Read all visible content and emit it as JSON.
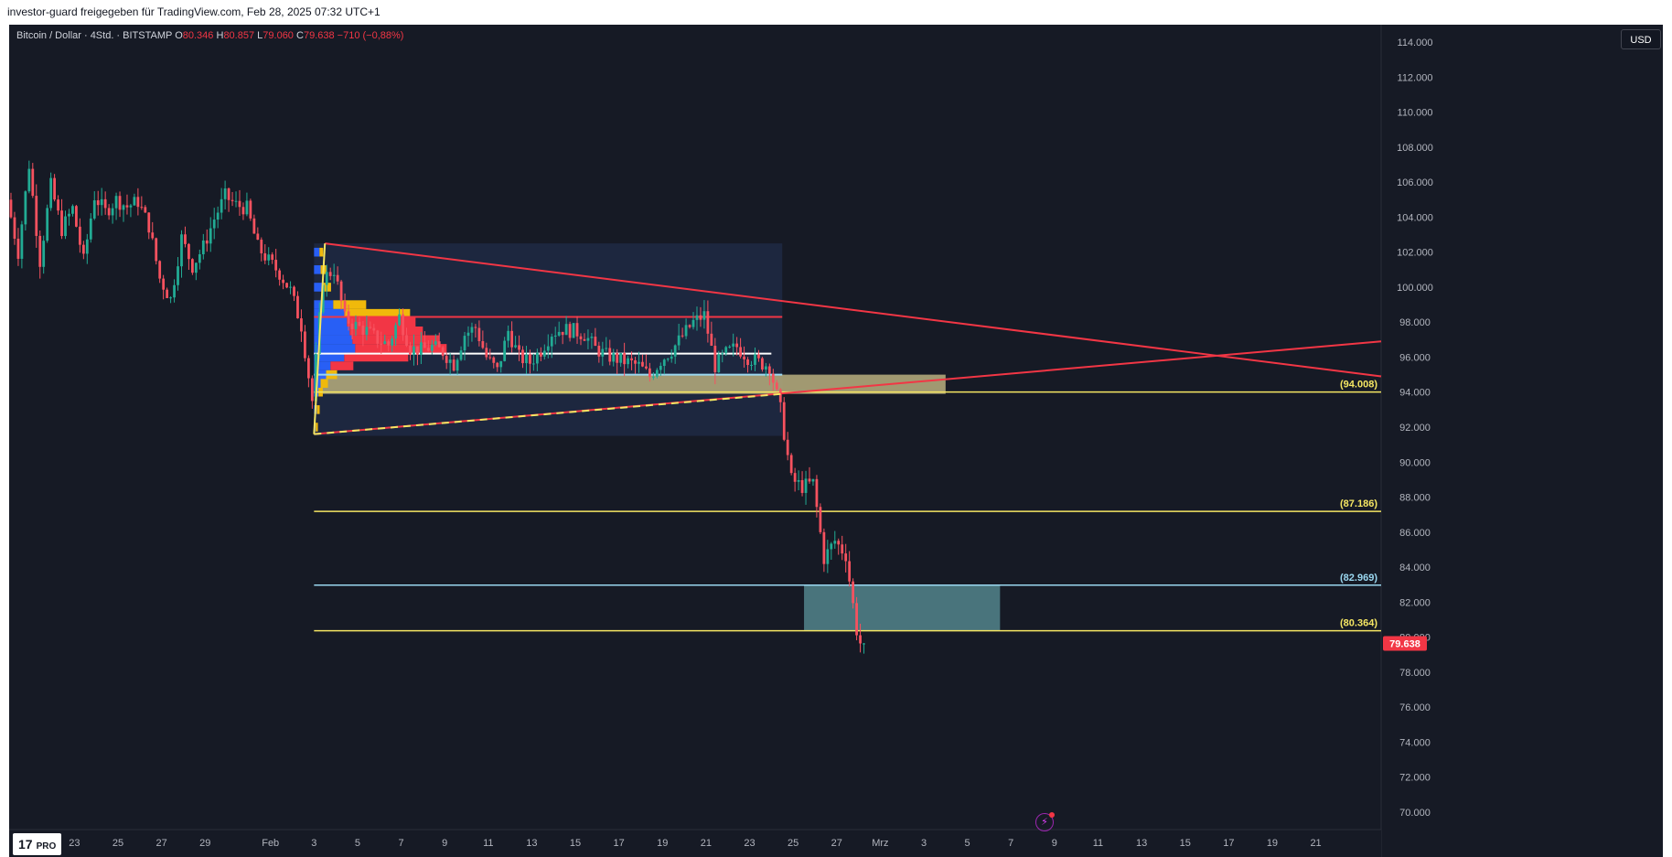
{
  "header": {
    "share_text": "investor-guard freigegeben für TradingView.com, Feb 28, 2025 07:32 UTC+1"
  },
  "legend": {
    "symbol": "Bitcoin / Dollar · 4Std. · BITSTAMP",
    "open_label": "O",
    "open_value": "80.346",
    "high_label": "H",
    "high_value": "80.857",
    "low_label": "L",
    "low_value": "79.060",
    "close_label": "C",
    "close_value": "79.638",
    "change": "−710 (−0,88%)"
  },
  "currency": "USD",
  "logo": {
    "mark": "17",
    "badge": "PRO"
  },
  "colors": {
    "background": "#161a25",
    "up": "#26a69a",
    "up_candle": "#22ab94",
    "down": "#f23645",
    "down_candle": "#f7525f",
    "level_yellow": "#f5e663",
    "level_cyan": "#9ad7f0",
    "trend_red": "#f23645",
    "zone_olive": "#b0a77a",
    "zone_teal": "#4f7e86"
  },
  "chart_data": {
    "type": "candlestick",
    "symbol": "Bitcoin / Dollar",
    "timeframe": "4Std.",
    "exchange": "BITSTAMP",
    "y_axis": {
      "ylim": [
        69000,
        115000
      ],
      "ticks": [
        70000,
        72000,
        74000,
        76000,
        78000,
        80000,
        82000,
        84000,
        86000,
        88000,
        90000,
        92000,
        94000,
        96000,
        98000,
        100000,
        102000,
        104000,
        106000,
        108000,
        110000,
        112000,
        114000
      ],
      "tick_labels": [
        "70.000",
        "72.000",
        "74.000",
        "76.000",
        "78.000",
        "80.000",
        "82.000",
        "84.000",
        "86.000",
        "88.000",
        "90.000",
        "92.000",
        "94.000",
        "96.000",
        "98.000",
        "100.000",
        "102.000",
        "104.000",
        "106.000",
        "108.000",
        "110.000",
        "112.000",
        "114.000"
      ],
      "side": "right"
    },
    "x_axis": {
      "start": "2025-01-20",
      "end": "2025-03-24",
      "ticks": [
        {
          "date": "2025-01-23",
          "label": "23"
        },
        {
          "date": "2025-01-25",
          "label": "25"
        },
        {
          "date": "2025-01-27",
          "label": "27"
        },
        {
          "date": "2025-01-29",
          "label": "29"
        },
        {
          "date": "2025-02-01",
          "label": "Feb"
        },
        {
          "date": "2025-02-03",
          "label": "3"
        },
        {
          "date": "2025-02-05",
          "label": "5"
        },
        {
          "date": "2025-02-07",
          "label": "7"
        },
        {
          "date": "2025-02-09",
          "label": "9"
        },
        {
          "date": "2025-02-11",
          "label": "11"
        },
        {
          "date": "2025-02-13",
          "label": "13"
        },
        {
          "date": "2025-02-15",
          "label": "15"
        },
        {
          "date": "2025-02-17",
          "label": "17"
        },
        {
          "date": "2025-02-19",
          "label": "19"
        },
        {
          "date": "2025-02-21",
          "label": "21"
        },
        {
          "date": "2025-02-23",
          "label": "23"
        },
        {
          "date": "2025-02-25",
          "label": "25"
        },
        {
          "date": "2025-02-27",
          "label": "27"
        },
        {
          "date": "2025-03-01",
          "label": "Mrz"
        },
        {
          "date": "2025-03-03",
          "label": "3"
        },
        {
          "date": "2025-03-05",
          "label": "5"
        },
        {
          "date": "2025-03-07",
          "label": "7"
        },
        {
          "date": "2025-03-09",
          "label": "9"
        },
        {
          "date": "2025-03-11",
          "label": "11"
        },
        {
          "date": "2025-03-13",
          "label": "13"
        },
        {
          "date": "2025-03-15",
          "label": "15"
        },
        {
          "date": "2025-03-17",
          "label": "17"
        },
        {
          "date": "2025-03-19",
          "label": "19"
        },
        {
          "date": "2025-03-21",
          "label": "21"
        }
      ]
    },
    "price_path": [
      [
        "2025-01-20",
        105000
      ],
      [
        "2025-01-20T12",
        102000
      ],
      [
        "2025-01-21",
        107000
      ],
      [
        "2025-01-21T12",
        101500
      ],
      [
        "2025-01-22",
        105800
      ],
      [
        "2025-01-22T12",
        103300
      ],
      [
        "2025-01-23",
        104500
      ],
      [
        "2025-01-23T12",
        101500
      ],
      [
        "2025-01-24",
        105200
      ],
      [
        "2025-01-24T12",
        104300
      ],
      [
        "2025-01-25",
        105000
      ],
      [
        "2025-01-25T12",
        104600
      ],
      [
        "2025-01-26",
        104900
      ],
      [
        "2025-01-26T12",
        103500
      ],
      [
        "2025-01-27",
        100500
      ],
      [
        "2025-01-27T12",
        99300
      ],
      [
        "2025-01-28",
        102800
      ],
      [
        "2025-01-28T12",
        101200
      ],
      [
        "2025-01-29",
        102300
      ],
      [
        "2025-01-29T12",
        103900
      ],
      [
        "2025-01-30",
        105200
      ],
      [
        "2025-01-30T12",
        104700
      ],
      [
        "2025-01-31",
        104500
      ],
      [
        "2025-01-31T12",
        102300
      ],
      [
        "2025-02-01",
        101500
      ],
      [
        "2025-02-01T12",
        100800
      ],
      [
        "2025-02-02",
        99800
      ],
      [
        "2025-02-02T12",
        97800
      ],
      [
        "2025-02-03",
        93500
      ],
      [
        "2025-02-03T12",
        100500
      ],
      [
        "2025-02-04",
        101000
      ],
      [
        "2025-02-04T12",
        98200
      ],
      [
        "2025-02-05",
        97800
      ],
      [
        "2025-02-05T12",
        97500
      ],
      [
        "2025-02-06",
        97000
      ],
      [
        "2025-02-06T12",
        96700
      ],
      [
        "2025-02-07",
        98300
      ],
      [
        "2025-02-07T12",
        96500
      ],
      [
        "2025-02-08",
        96400
      ],
      [
        "2025-02-08T12",
        96600
      ],
      [
        "2025-02-09",
        96300
      ],
      [
        "2025-02-09T12",
        95600
      ],
      [
        "2025-02-10",
        97300
      ],
      [
        "2025-02-10T12",
        97700
      ],
      [
        "2025-02-11",
        96000
      ],
      [
        "2025-02-11T12",
        95200
      ],
      [
        "2025-02-12",
        97500
      ],
      [
        "2025-02-12T12",
        96000
      ],
      [
        "2025-02-13",
        95700
      ],
      [
        "2025-02-13T12",
        96400
      ],
      [
        "2025-02-14",
        97400
      ],
      [
        "2025-02-14T12",
        97600
      ],
      [
        "2025-02-15",
        97500
      ],
      [
        "2025-02-15T12",
        97300
      ],
      [
        "2025-02-16",
        96500
      ],
      [
        "2025-02-16T12",
        96100
      ],
      [
        "2025-02-17",
        95900
      ],
      [
        "2025-02-17T12",
        95700
      ],
      [
        "2025-02-18",
        95500
      ],
      [
        "2025-02-18T12",
        94900
      ],
      [
        "2025-02-19",
        95800
      ],
      [
        "2025-02-19T12",
        96400
      ],
      [
        "2025-02-20",
        97200
      ],
      [
        "2025-02-20T12",
        98000
      ],
      [
        "2025-02-21",
        98400
      ],
      [
        "2025-02-21T12",
        95500
      ],
      [
        "2025-02-22",
        96200
      ],
      [
        "2025-02-22T12",
        96600
      ],
      [
        "2025-02-23",
        96000
      ],
      [
        "2025-02-23T12",
        95700
      ],
      [
        "2025-02-24",
        95500
      ],
      [
        "2025-02-24T12",
        93000
      ],
      [
        "2025-02-25",
        89000
      ],
      [
        "2025-02-25T12",
        88600
      ],
      [
        "2025-02-26",
        88800
      ],
      [
        "2025-02-26T12",
        84500
      ],
      [
        "2025-02-27",
        85500
      ],
      [
        "2025-02-27T12",
        84700
      ],
      [
        "2025-02-28",
        80400
      ],
      [
        "2025-02-28T04",
        79638
      ]
    ],
    "last_price": {
      "value": 79638,
      "label": "79.638"
    },
    "levels": [
      {
        "value": 94008,
        "label": "(94.008)",
        "color": "#f5e663",
        "start": "2025-02-03"
      },
      {
        "value": 87186,
        "label": "(87.186)",
        "color": "#f5e663",
        "start": "2025-02-03"
      },
      {
        "value": 82969,
        "label": "(82.969)",
        "color": "#9ad7f0",
        "start": "2025-02-03"
      },
      {
        "value": 80364,
        "label": "(80.364)",
        "color": "#f5e663",
        "start": "2025-02-03"
      }
    ],
    "horizontal_segments": [
      {
        "value": 98300,
        "color": "#f23645",
        "start": "2025-02-03",
        "end": "2025-02-24T12"
      },
      {
        "value": 96200,
        "color": "#ffffff",
        "start": "2025-02-03",
        "end": "2025-02-24"
      },
      {
        "value": 95000,
        "color": "#9ad7f0",
        "start": "2025-02-03",
        "end": "2025-02-24T12"
      }
    ],
    "trendlines": [
      {
        "from": [
          "2025-02-03T12",
          102500
        ],
        "to": [
          "2025-03-24",
          94900
        ],
        "color": "#f23645"
      },
      {
        "from": [
          "2025-02-03",
          91600
        ],
        "to": [
          "2025-03-24",
          96900
        ],
        "color": "#f23645"
      },
      {
        "from": [
          "2025-02-03",
          91600
        ],
        "to": [
          "2025-02-24T12",
          93900
        ],
        "color": "#f5e663",
        "style": "dashed"
      },
      {
        "from": [
          "2025-02-03",
          91600
        ],
        "to": [
          "2025-02-03T12",
          102500
        ],
        "color": "#f5e663"
      }
    ],
    "zones": [
      {
        "from": "2025-02-03",
        "to": "2025-02-24T12",
        "low": 91500,
        "high": 102500,
        "color": "#1e2a44"
      },
      {
        "from": "2025-02-03",
        "to": "2025-03-04",
        "low": 93900,
        "high": 95000,
        "color": "#b0a77a"
      },
      {
        "from": "2025-02-25T12",
        "to": "2025-03-06T12",
        "low": 80364,
        "high": 82969,
        "color": "#4f7e86"
      }
    ],
    "volume_profile": {
      "date": "2025-02-03",
      "bins": [
        {
          "price": 102000,
          "blue": 0.1,
          "yellow": 0.05
        },
        {
          "price": 101000,
          "blue": 0.12,
          "yellow": 0.08
        },
        {
          "price": 100000,
          "blue": 0.15,
          "yellow": 0.12
        },
        {
          "price": 99000,
          "blue": 0.35,
          "yellow": 0.45
        },
        {
          "price": 98500,
          "blue": 0.55,
          "yellow": 0.9
        },
        {
          "price": 98000,
          "blue": 0.6,
          "red": 0.75
        },
        {
          "price": 97500,
          "blue": 0.65,
          "red": 0.8
        },
        {
          "price": 97000,
          "blue": 0.7,
          "red": 0.95
        },
        {
          "price": 96500,
          "blue": 0.75,
          "red": 1
        },
        {
          "price": 96000,
          "blue": 0.55,
          "red": 0.7
        },
        {
          "price": 95500,
          "blue": 0.3,
          "red": 0.25
        },
        {
          "price": 95000,
          "blue": 0.22,
          "yellow": 0.15
        },
        {
          "price": 94500,
          "blue": 0.12,
          "yellow": 0.1
        },
        {
          "price": 94000,
          "blue": 0.08,
          "yellow": 0.06
        },
        {
          "price": 93000,
          "blue": 0.05,
          "yellow": 0.04
        },
        {
          "price": 92000,
          "blue": 0.03,
          "yellow": 0.03
        }
      ]
    }
  }
}
